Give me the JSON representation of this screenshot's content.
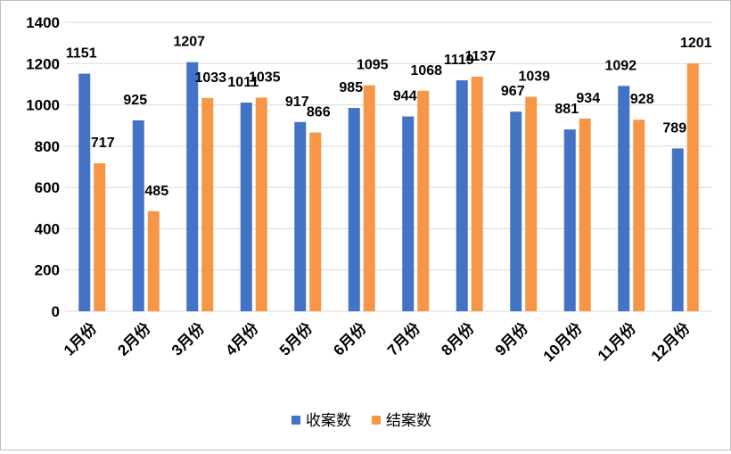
{
  "chart_data": {
    "type": "bar",
    "categories": [
      "1月份",
      "2月份",
      "3月份",
      "4月份",
      "5月份",
      "6月份",
      "7月份",
      "8月份",
      "9月份",
      "10月份",
      "11月份",
      "12月份"
    ],
    "series": [
      {
        "name": "收案数",
        "color": "#4472C4",
        "values": [
          1151,
          925,
          1207,
          1011,
          917,
          985,
          944,
          1119,
          967,
          881,
          1092,
          789
        ]
      },
      {
        "name": "结案数",
        "color": "#F79646",
        "values": [
          717,
          485,
          1033,
          1035,
          866,
          1095,
          1068,
          1137,
          1039,
          934,
          928,
          1201
        ]
      }
    ],
    "ylim": [
      0,
      1400
    ],
    "yticks": [
      0,
      200,
      400,
      600,
      800,
      1000,
      1200,
      1400
    ],
    "grid": true,
    "legend": "bottom",
    "title": "",
    "xlabel": "",
    "ylabel": ""
  }
}
